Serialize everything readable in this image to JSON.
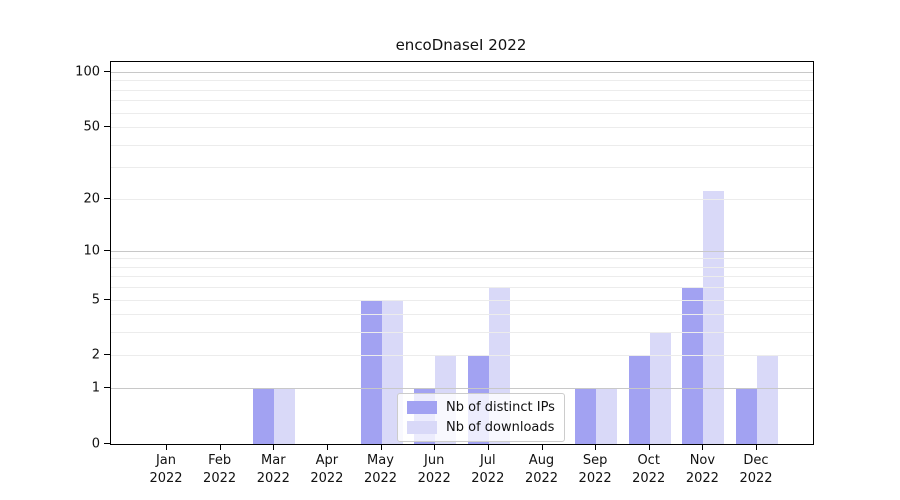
{
  "title": "encoDnaseI 2022",
  "chart_data": {
    "type": "bar",
    "title": "encoDnaseI 2022",
    "categories": [
      "Jan",
      "Feb",
      "Mar",
      "Apr",
      "May",
      "Jun",
      "Jul",
      "Aug",
      "Sep",
      "Oct",
      "Nov",
      "Dec"
    ],
    "year_label": "2022",
    "series": [
      {
        "name": "Nb of distinct IPs",
        "color": "#a2a2f2",
        "values": [
          0,
          0,
          1,
          0,
          5,
          1,
          2,
          0,
          1,
          2,
          6,
          1
        ]
      },
      {
        "name": "Nb of downloads",
        "color": "#d9d9f8",
        "values": [
          0,
          0,
          1,
          0,
          5,
          2,
          6,
          0,
          1,
          3,
          22,
          2
        ]
      }
    ],
    "y_ticks": [
      0,
      1,
      2,
      5,
      10,
      20,
      50,
      100
    ],
    "y_minor_gridlines": [
      2,
      3,
      4,
      5,
      6,
      7,
      8,
      9,
      20,
      30,
      40,
      50,
      60,
      70,
      80,
      90
    ],
    "y_major_gridlines": [
      1,
      10,
      100
    ],
    "scale": "log1p",
    "ylim": [
      0,
      113
    ],
    "xlabel": "",
    "ylabel": "",
    "grid": "horizontal",
    "legend_position": "lower center"
  },
  "colors": {
    "spine": "#000000",
    "major_grid": "#c8c8c8",
    "minor_grid": "#ececec",
    "background": "#ffffff"
  }
}
